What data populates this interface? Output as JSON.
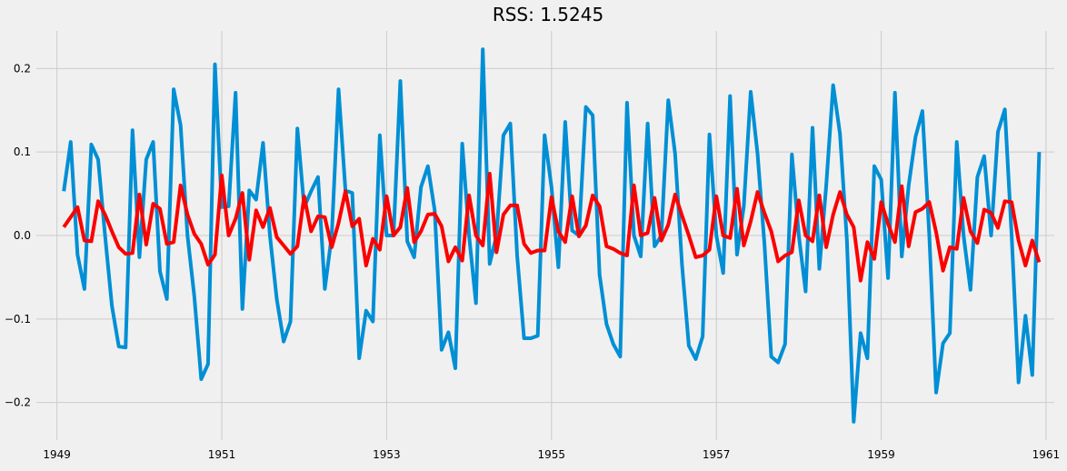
{
  "chart_data": {
    "type": "line",
    "title": "RSS: 1.5245",
    "xlabel": "",
    "ylabel": "",
    "grid": true,
    "x_start": "1949-02",
    "x_step": "1 month",
    "xlim": [
      1948.75,
      1961.1
    ],
    "ylim": [
      -0.245,
      0.245
    ],
    "x_ticks": [
      1949,
      1951,
      1953,
      1955,
      1957,
      1959,
      1961
    ],
    "x_tick_labels": [
      "1949",
      "1951",
      "1953",
      "1955",
      "1957",
      "1959",
      "1961"
    ],
    "y_ticks": [
      -0.2,
      -0.1,
      0.0,
      0.1,
      0.2
    ],
    "y_tick_labels": [
      "−0.2",
      "−0.1",
      "0.0",
      "0.1",
      "0.2"
    ],
    "series": [
      {
        "color": "#008fd5",
        "values": [
          0.053,
          0.112,
          -0.023,
          -0.064,
          0.109,
          0.091,
          0.0,
          -0.084,
          -0.133,
          -0.134,
          0.126,
          -0.026,
          0.091,
          0.112,
          -0.043,
          -0.076,
          0.175,
          0.132,
          0.0,
          -0.073,
          -0.172,
          -0.154,
          0.205,
          0.034,
          0.035,
          0.171,
          -0.088,
          0.054,
          0.043,
          0.111,
          0.0,
          -0.076,
          -0.127,
          -0.103,
          0.128,
          0.034,
          0.053,
          0.07,
          -0.064,
          0.0,
          0.175,
          0.054,
          0.051,
          -0.147,
          -0.09,
          -0.103,
          0.12,
          0.0,
          0.0,
          0.185,
          -0.007,
          -0.026,
          0.058,
          0.083,
          0.03,
          -0.137,
          -0.116,
          -0.159,
          0.11,
          0.0,
          -0.081,
          0.223,
          -0.034,
          0.0,
          0.12,
          0.134,
          -0.024,
          -0.123,
          -0.123,
          -0.12,
          0.12,
          0.058,
          -0.038,
          0.136,
          0.006,
          0.0,
          0.154,
          0.144,
          -0.047,
          -0.106,
          -0.13,
          -0.145,
          0.159,
          0.0,
          -0.025,
          0.134,
          -0.013,
          0.0,
          0.162,
          0.098,
          -0.035,
          -0.132,
          -0.148,
          -0.121,
          0.121,
          0.0,
          -0.045,
          0.167,
          -0.023,
          0.035,
          0.172,
          0.098,
          -0.01,
          -0.145,
          -0.152,
          -0.13,
          0.097,
          0.0,
          -0.067,
          0.129,
          -0.04,
          0.06,
          0.18,
          0.122,
          -0.005,
          -0.223,
          -0.117,
          -0.147,
          0.083,
          0.067,
          -0.051,
          0.171,
          -0.025,
          0.06,
          0.118,
          0.149,
          0.0,
          -0.188,
          -0.129,
          -0.117,
          0.112,
          0.0,
          -0.065,
          0.07,
          0.095,
          0.0,
          0.124,
          0.151,
          0.0,
          -0.176,
          -0.096,
          -0.167,
          0.1
        ]
      },
      {
        "color": "#fc0000",
        "values": [
          0.01,
          0.022,
          0.034,
          -0.006,
          -0.007,
          0.041,
          0.025,
          0.005,
          -0.014,
          -0.022,
          -0.021,
          0.049,
          -0.011,
          0.038,
          0.032,
          -0.01,
          -0.008,
          0.06,
          0.025,
          0.002,
          -0.01,
          -0.035,
          -0.023,
          0.072,
          0.0,
          0.02,
          0.051,
          -0.029,
          0.03,
          0.01,
          0.033,
          -0.002,
          -0.012,
          -0.022,
          -0.013,
          0.047,
          0.005,
          0.023,
          0.022,
          -0.014,
          0.015,
          0.053,
          0.011,
          0.02,
          -0.036,
          -0.004,
          -0.017,
          0.047,
          0.0,
          0.01,
          0.057,
          -0.008,
          0.005,
          0.025,
          0.026,
          0.011,
          -0.031,
          -0.014,
          -0.03,
          0.048,
          0.0,
          -0.012,
          0.074,
          -0.02,
          0.025,
          0.036,
          0.036,
          -0.01,
          -0.021,
          -0.018,
          -0.018,
          0.046,
          0.005,
          -0.008,
          0.047,
          -0.001,
          0.012,
          0.048,
          0.035,
          -0.013,
          -0.016,
          -0.021,
          -0.024,
          0.06,
          0.0,
          0.003,
          0.045,
          -0.006,
          0.013,
          0.049,
          0.024,
          0.0,
          -0.026,
          -0.024,
          -0.017,
          0.047,
          0.0,
          -0.003,
          0.056,
          -0.012,
          0.017,
          0.052,
          0.027,
          0.005,
          -0.031,
          -0.024,
          -0.02,
          0.042,
          0.0,
          -0.007,
          0.048,
          -0.014,
          0.025,
          0.052,
          0.025,
          0.01,
          -0.054,
          -0.008,
          -0.028,
          0.04,
          0.014,
          -0.008,
          0.059,
          -0.013,
          0.028,
          0.032,
          0.04,
          0.004,
          -0.042,
          -0.014,
          -0.016,
          0.045,
          0.005,
          -0.009,
          0.031,
          0.027,
          0.009,
          0.041,
          0.04,
          -0.006,
          -0.036,
          -0.006,
          -0.032
        ]
      }
    ]
  }
}
